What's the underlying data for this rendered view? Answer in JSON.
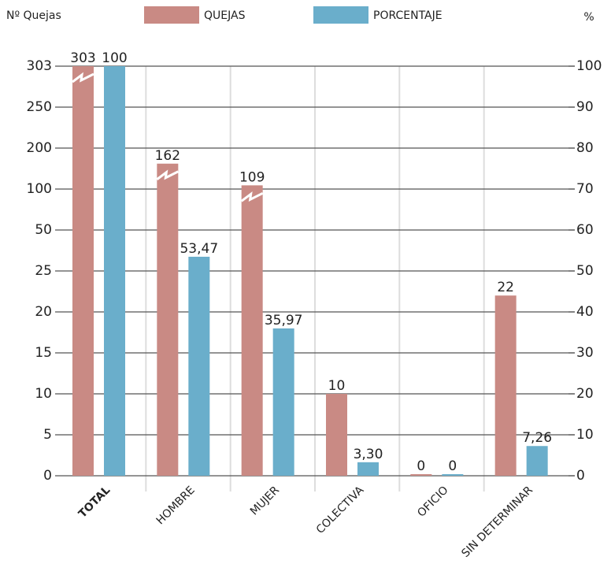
{
  "chart_data": {
    "type": "bar",
    "y_label": "Nº Quejas",
    "y2_label": "%",
    "categories": [
      "TOTAL",
      "HOMBRE",
      "MUJER",
      "COLECTIVA",
      "OFICIO",
      "SIN DETERMINAR"
    ],
    "series": [
      {
        "name": "QUEJAS",
        "color": "#c98a84",
        "values": [
          303,
          162,
          109,
          10,
          0,
          22
        ]
      },
      {
        "name": "PORCENTAJE",
        "color": "#6aaecb",
        "axis": "y2",
        "values": [
          100,
          53.47,
          35.97,
          3.3,
          0,
          7.26
        ],
        "value_labels": [
          "100",
          "53,47",
          "35,97",
          "3,30",
          "0",
          "7,26"
        ]
      }
    ],
    "ylim": [
      0,
      303
    ],
    "yticks": [
      0,
      5,
      10,
      15,
      20,
      25,
      50,
      100,
      200,
      250,
      303
    ],
    "y2lim": [
      0,
      100
    ],
    "y2ticks": [
      0,
      10,
      20,
      30,
      40,
      50,
      60,
      70,
      80,
      90,
      100
    ],
    "grid": true
  }
}
